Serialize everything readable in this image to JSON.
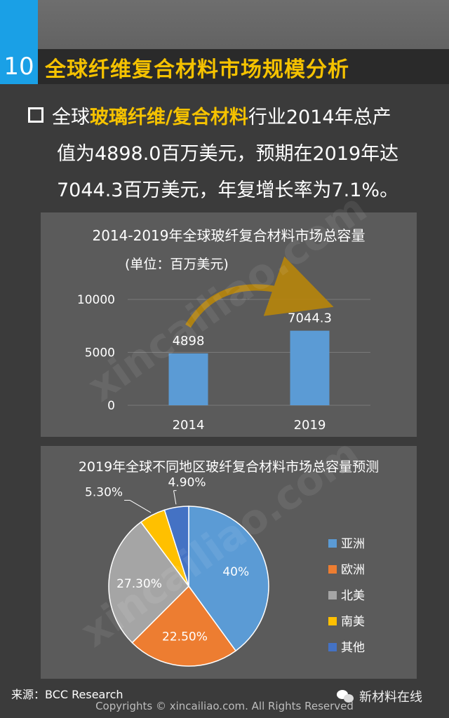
{
  "header": {
    "number": "10",
    "title": "全球纤维复合材料市场规模分析"
  },
  "intro": {
    "line1_prefix": "全球",
    "line1_highlight": "玻璃纤维/复合材料",
    "line1_suffix": "行业2014年总产",
    "line2": "值为4898.0百万美元，预期在2019年达",
    "line3": "7044.3百万美元，年复增长率为7.1%。"
  },
  "chart_data": [
    {
      "type": "bar",
      "title": "2014-2019年全球玻纤复合材料市场总容量",
      "subtitle": "(单位：百万美元)",
      "categories": [
        "2014",
        "2019"
      ],
      "values": [
        4898,
        7044.3
      ],
      "data_labels": [
        "4898",
        "7044.3"
      ],
      "ylim": [
        0,
        10000
      ],
      "yticks": [
        "0",
        "5000",
        "10000"
      ],
      "grid": true,
      "bar_color": "#5b9bd5"
    },
    {
      "type": "pie",
      "title": "2019年全球不同地区玻纤复合材料市场总容量预测",
      "categories": [
        "亚洲",
        "欧洲",
        "北美",
        "南美",
        "其他"
      ],
      "values": [
        40,
        22.5,
        27.3,
        5.3,
        4.9
      ],
      "data_labels": [
        "40%",
        "22.50%",
        "27.30%",
        "5.30%",
        "4.90%"
      ],
      "colors": [
        "#5b9bd5",
        "#ed7d31",
        "#a5a5a5",
        "#ffc000",
        "#4472c4"
      ],
      "legend_position": "right"
    }
  ],
  "footer": {
    "source": "来源：BCC Research",
    "copyright": "Copyrights © xincailiao.com. All Rights Reserved",
    "brand": "新材料在线"
  },
  "watermark": "xincailiao.com"
}
